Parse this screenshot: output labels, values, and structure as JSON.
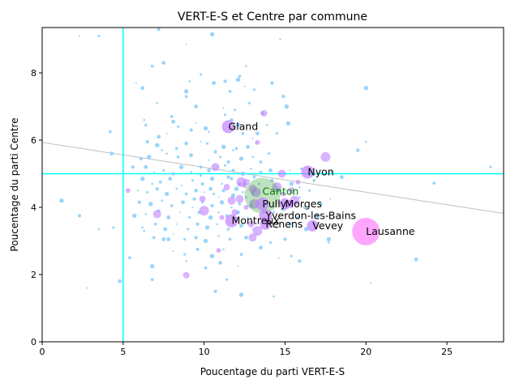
{
  "chart_data": {
    "type": "scatter",
    "title": "VERT-E-S et Centre par commune",
    "xlabel": "Poucentage du parti VERT-E-S",
    "ylabel": "Poucentage du parti Centre",
    "xlim": [
      0,
      28.5
    ],
    "ylim": [
      0,
      9.35
    ],
    "xticks": [
      0,
      5,
      10,
      15,
      20,
      25
    ],
    "yticks": [
      0,
      2,
      4,
      6,
      8
    ],
    "grid": false,
    "reference_lines": {
      "vertical_x": 5.0,
      "horizontal_y": 5.0,
      "color": "#00ffff"
    },
    "trend_line": {
      "y_at_0": 5.93,
      "y_at_28_5": 3.82,
      "color": "#bfbfbf"
    },
    "canton": {
      "label": "Canton",
      "x": 13.6,
      "y": 4.35,
      "color": "#2ca02c",
      "label_color": "#008000"
    },
    "labeled_communes": [
      {
        "name": "Gland",
        "x": 11.5,
        "y": 6.4,
        "size": 8
      },
      {
        "name": "Nyon",
        "x": 16.4,
        "y": 5.05,
        "size": 8
      },
      {
        "name": "Pully",
        "x": 13.6,
        "y": 4.1,
        "size": 8
      },
      {
        "name": "Morges",
        "x": 15.0,
        "y": 4.1,
        "size": 7
      },
      {
        "name": "Yverdon-les-Bains",
        "x": 13.8,
        "y": 3.75,
        "size": 8
      },
      {
        "name": "Montreux",
        "x": 11.7,
        "y": 3.6,
        "size": 8
      },
      {
        "name": "Renens",
        "x": 13.8,
        "y": 3.5,
        "size": 7
      },
      {
        "name": "Vevey",
        "x": 16.7,
        "y": 3.45,
        "size": 7
      },
      {
        "name": "Lausanne",
        "x": 20.0,
        "y": 3.28,
        "size": 17
      }
    ],
    "other_communes": [
      [
        2.3,
        9.1
      ],
      [
        3.5,
        9.1
      ],
      [
        7.2,
        9.3
      ],
      [
        10.5,
        9.15
      ],
      [
        14.7,
        9.0
      ],
      [
        6.8,
        8.2
      ],
      [
        7.5,
        8.3
      ],
      [
        8.9,
        8.85
      ],
      [
        9.8,
        7.95
      ],
      [
        11.3,
        7.75
      ],
      [
        12.1,
        7.8
      ],
      [
        12.6,
        8.2
      ],
      [
        12.2,
        7.9
      ],
      [
        10.6,
        7.7
      ],
      [
        12.5,
        7.6
      ],
      [
        13.1,
        7.5
      ],
      [
        14.2,
        7.7
      ],
      [
        8.9,
        7.45
      ],
      [
        9.1,
        7.75
      ],
      [
        11.6,
        7.45
      ],
      [
        6.2,
        7.55
      ],
      [
        5.8,
        7.7
      ],
      [
        12.8,
        7.1
      ],
      [
        14.9,
        7.3
      ],
      [
        15.1,
        7.0
      ],
      [
        7.1,
        7.1
      ],
      [
        8.9,
        7.3
      ],
      [
        9.5,
        7.0
      ],
      [
        11.2,
        6.95
      ],
      [
        11.9,
        6.9
      ],
      [
        13.6,
        6.8
      ],
      [
        15.2,
        6.5
      ],
      [
        6.3,
        6.6
      ],
      [
        8.0,
        6.7
      ],
      [
        8.1,
        6.55
      ],
      [
        9.5,
        6.5
      ],
      [
        11.3,
        6.75
      ],
      [
        11.7,
        6.6
      ],
      [
        12.1,
        6.45
      ],
      [
        13.9,
        6.45
      ],
      [
        6.4,
        6.45
      ],
      [
        7.2,
        6.1
      ],
      [
        7.7,
        6.2
      ],
      [
        8.4,
        6.4
      ],
      [
        9.2,
        6.3
      ],
      [
        10.1,
        6.35
      ],
      [
        10.3,
        6.25
      ],
      [
        12.4,
        6.2
      ],
      [
        13.3,
        6.2
      ],
      [
        13.0,
        6.05
      ],
      [
        14.5,
        6.2
      ],
      [
        6.5,
        5.95
      ],
      [
        7.1,
        5.85
      ],
      [
        7.4,
        5.7
      ],
      [
        8.3,
        5.75
      ],
      [
        8.9,
        5.9
      ],
      [
        9.8,
        5.95
      ],
      [
        10.2,
        5.9
      ],
      [
        10.7,
        5.65
      ],
      [
        11.2,
        5.8
      ],
      [
        11.8,
        5.7
      ],
      [
        12.0,
        5.75
      ],
      [
        12.7,
        5.8
      ],
      [
        13.2,
        5.9
      ],
      [
        14.0,
        5.6
      ],
      [
        6.1,
        5.45
      ],
      [
        6.6,
        5.5
      ],
      [
        7.7,
        5.6
      ],
      [
        8.4,
        5.5
      ],
      [
        9.2,
        5.55
      ],
      [
        10.3,
        5.4
      ],
      [
        11.0,
        5.5
      ],
      [
        11.5,
        5.35
      ],
      [
        12.3,
        5.45
      ],
      [
        13.0,
        5.5
      ],
      [
        13.5,
        5.35
      ],
      [
        6.4,
        5.2
      ],
      [
        6.9,
        5.05
      ],
      [
        7.5,
        5.1
      ],
      [
        8.1,
        5.0
      ],
      [
        8.6,
        5.2
      ],
      [
        9.2,
        5.05
      ],
      [
        9.8,
        5.2
      ],
      [
        10.3,
        5.1
      ],
      [
        10.8,
        5.2
      ],
      [
        11.3,
        5.25
      ],
      [
        11.8,
        5.1
      ],
      [
        12.4,
        5.0
      ],
      [
        12.9,
        5.15
      ],
      [
        13.5,
        5.05
      ],
      [
        14.1,
        5.1
      ],
      [
        15.3,
        5.1
      ],
      [
        16.0,
        5.15
      ],
      [
        5.6,
        5.2
      ],
      [
        6.2,
        4.85
      ],
      [
        6.8,
        4.7
      ],
      [
        7.3,
        4.75
      ],
      [
        7.9,
        4.85
      ],
      [
        8.6,
        4.65
      ],
      [
        9.3,
        4.8
      ],
      [
        9.9,
        4.7
      ],
      [
        10.5,
        4.85
      ],
      [
        11.1,
        4.7
      ],
      [
        11.7,
        4.85
      ],
      [
        12.2,
        4.7
      ],
      [
        12.8,
        4.8
      ],
      [
        13.4,
        4.7
      ],
      [
        14.2,
        4.8
      ],
      [
        15.4,
        4.7
      ],
      [
        15.9,
        4.6
      ],
      [
        16.8,
        4.8
      ],
      [
        18.5,
        4.9
      ],
      [
        5.9,
        4.5
      ],
      [
        6.5,
        4.45
      ],
      [
        7.1,
        4.55
      ],
      [
        7.7,
        4.4
      ],
      [
        8.3,
        4.55
      ],
      [
        8.9,
        4.4
      ],
      [
        9.5,
        4.5
      ],
      [
        10.0,
        4.45
      ],
      [
        10.6,
        4.4
      ],
      [
        11.2,
        4.5
      ],
      [
        11.8,
        4.35
      ],
      [
        12.4,
        4.45
      ],
      [
        13.0,
        4.4
      ],
      [
        14.6,
        4.5
      ],
      [
        15.6,
        4.4
      ],
      [
        16.5,
        4.5
      ],
      [
        6.0,
        4.15
      ],
      [
        6.7,
        4.1
      ],
      [
        7.4,
        4.2
      ],
      [
        8.0,
        4.05
      ],
      [
        8.7,
        4.15
      ],
      [
        9.3,
        4.0
      ],
      [
        9.9,
        4.15
      ],
      [
        10.5,
        4.05
      ],
      [
        11.1,
        4.15
      ],
      [
        11.7,
        4.0
      ],
      [
        12.2,
        4.1
      ],
      [
        12.9,
        4.05
      ],
      [
        14.7,
        4.15
      ],
      [
        16.2,
        4.0
      ],
      [
        17.2,
        4.1
      ],
      [
        5.7,
        3.75
      ],
      [
        6.4,
        3.8
      ],
      [
        7.2,
        3.9
      ],
      [
        7.8,
        3.7
      ],
      [
        8.5,
        3.85
      ],
      [
        9.1,
        3.7
      ],
      [
        9.7,
        3.85
      ],
      [
        10.4,
        3.7
      ],
      [
        10.9,
        3.85
      ],
      [
        11.4,
        3.75
      ],
      [
        12.1,
        3.85
      ],
      [
        12.7,
        3.7
      ],
      [
        14.3,
        3.85
      ],
      [
        15.8,
        3.7
      ],
      [
        17.0,
        3.75
      ],
      [
        6.2,
        3.4
      ],
      [
        7.0,
        3.5
      ],
      [
        7.6,
        3.35
      ],
      [
        8.3,
        3.5
      ],
      [
        9.0,
        3.35
      ],
      [
        9.6,
        3.5
      ],
      [
        10.2,
        3.4
      ],
      [
        10.8,
        3.5
      ],
      [
        11.5,
        3.35
      ],
      [
        12.3,
        3.45
      ],
      [
        13.0,
        3.35
      ],
      [
        14.5,
        3.4
      ],
      [
        15.3,
        3.5
      ],
      [
        16.3,
        3.35
      ],
      [
        6.3,
        3.3
      ],
      [
        6.9,
        3.1
      ],
      [
        7.5,
        3.05
      ],
      [
        8.1,
        3.2
      ],
      [
        8.8,
        3.05
      ],
      [
        9.5,
        3.1
      ],
      [
        10.1,
        3.0
      ],
      [
        10.9,
        3.15
      ],
      [
        11.6,
        3.05
      ],
      [
        12.6,
        3.1
      ],
      [
        13.3,
        3.2
      ],
      [
        14.1,
        2.95
      ],
      [
        15.0,
        3.05
      ],
      [
        17.7,
        3.05
      ],
      [
        17.7,
        2.95
      ],
      [
        5.4,
        2.5
      ],
      [
        7.8,
        3.05
      ],
      [
        8.1,
        2.7
      ],
      [
        8.8,
        2.6
      ],
      [
        9.6,
        2.75
      ],
      [
        10.5,
        2.55
      ],
      [
        11.2,
        2.75
      ],
      [
        12.3,
        2.6
      ],
      [
        13.5,
        2.8
      ],
      [
        14.6,
        2.5
      ],
      [
        15.4,
        2.55
      ],
      [
        15.9,
        2.4
      ],
      [
        6.8,
        2.25
      ],
      [
        8.9,
        2.4
      ],
      [
        10.1,
        2.2
      ],
      [
        11.0,
        2.35
      ],
      [
        12.1,
        2.25
      ],
      [
        11.4,
        1.85
      ],
      [
        10.7,
        1.5
      ],
      [
        12.3,
        1.4
      ],
      [
        14.3,
        1.35
      ],
      [
        6.8,
        1.85
      ],
      [
        4.8,
        1.8
      ],
      [
        2.8,
        1.6
      ],
      [
        4.4,
        3.4
      ],
      [
        2.3,
        3.75
      ],
      [
        1.2,
        4.2
      ],
      [
        3.5,
        3.35
      ],
      [
        4.2,
        6.25
      ],
      [
        4.3,
        5.6
      ],
      [
        17.8,
        4.25
      ],
      [
        17.9,
        5.05
      ],
      [
        19.5,
        5.7
      ],
      [
        20.0,
        7.55
      ],
      [
        20.0,
        5.95
      ],
      [
        24.2,
        4.72
      ],
      [
        23.1,
        2.45
      ],
      [
        20.3,
        1.75
      ],
      [
        27.7,
        5.2
      ],
      [
        11.5,
        4.9
      ],
      [
        12.0,
        4.55
      ],
      [
        12.6,
        4.3
      ],
      [
        13.1,
        4.9
      ],
      [
        10.4,
        4.55
      ],
      [
        10.9,
        4.3
      ],
      [
        9.8,
        4.95
      ],
      [
        9.4,
        4.25
      ],
      [
        14.9,
        3.95
      ],
      [
        15.9,
        4.3
      ]
    ],
    "medium_communes": [
      [
        5.3,
        4.5
      ],
      [
        8.9,
        1.98
      ],
      [
        7.1,
        3.8
      ],
      [
        10.0,
        3.9
      ],
      [
        11.1,
        3.7
      ],
      [
        11.9,
        3.85
      ],
      [
        12.2,
        4.25
      ],
      [
        12.3,
        4.75
      ],
      [
        12.5,
        4.65
      ],
      [
        12.6,
        4.75
      ],
      [
        13.0,
        4.55
      ],
      [
        13.2,
        4.45
      ],
      [
        13.3,
        5.93
      ],
      [
        13.7,
        6.8
      ],
      [
        14.8,
        5.0
      ],
      [
        14.5,
        4.6
      ],
      [
        14.9,
        4.4
      ],
      [
        15.4,
        4.5
      ],
      [
        15.3,
        4.1
      ],
      [
        15.6,
        4.2
      ],
      [
        15.8,
        4.75
      ],
      [
        12.9,
        3.5
      ],
      [
        13.0,
        3.1
      ],
      [
        13.3,
        3.3
      ],
      [
        12.6,
        4.0
      ],
      [
        11.4,
        4.6
      ],
      [
        11.7,
        4.2
      ],
      [
        17.5,
        5.5
      ],
      [
        10.9,
        2.72
      ],
      [
        9.9,
        4.25
      ],
      [
        10.7,
        5.2
      ],
      [
        13.1,
        4.1
      ]
    ],
    "colors": {
      "small": "#87cefa",
      "labeled": "#c080ff",
      "lausanne": "#ff80ff"
    }
  }
}
